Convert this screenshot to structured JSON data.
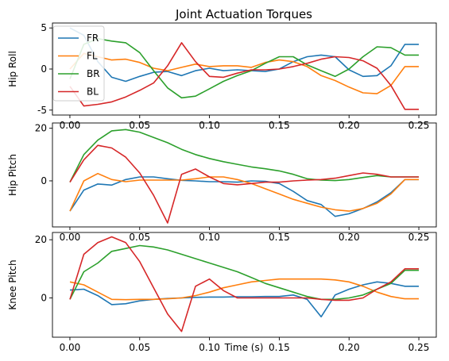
{
  "chart_data": {
    "type": "line",
    "title": "Joint Actuation Torques",
    "xlabel": "Time (s)",
    "x": [
      0.0,
      0.01,
      0.02,
      0.03,
      0.04,
      0.05,
      0.06,
      0.07,
      0.08,
      0.09,
      0.1,
      0.11,
      0.12,
      0.13,
      0.14,
      0.15,
      0.16,
      0.17,
      0.18,
      0.19,
      0.2,
      0.21,
      0.22,
      0.23,
      0.24,
      0.25
    ],
    "xticks": [
      "0.00",
      "0.05",
      "0.10",
      "0.15",
      "0.20",
      "0.25"
    ],
    "xlim": [
      -0.0125,
      0.2625
    ],
    "grid": false,
    "legend": {
      "location": "top-left",
      "entries": [
        "FR",
        "FL",
        "BR",
        "BL"
      ]
    },
    "colors": {
      "FR": "#1f77b4",
      "FL": "#ff7f0e",
      "BR": "#2ca02c",
      "BL": "#d62728"
    },
    "panels": [
      {
        "ylabel": "Hip Roll",
        "ylim": [
          -5.6,
          5.6
        ],
        "yticks": [
          5,
          0,
          -5
        ],
        "series": [
          {
            "name": "FR",
            "values": [
              5.0,
              4.1,
              0.9,
              -1.0,
              -1.5,
              -0.9,
              -0.4,
              -0.3,
              -0.8,
              -0.2,
              0.1,
              -0.2,
              -0.1,
              -0.2,
              -0.3,
              0.0,
              0.9,
              1.5,
              1.7,
              1.5,
              -0.1,
              -0.9,
              -0.8,
              0.4,
              3.0,
              3.0
            ]
          },
          {
            "name": "FL",
            "values": [
              0.0,
              1.9,
              1.5,
              1.1,
              1.2,
              0.8,
              0.1,
              -0.2,
              0.2,
              0.6,
              0.3,
              0.4,
              0.4,
              0.2,
              0.8,
              1.1,
              0.9,
              0.3,
              -0.8,
              -1.4,
              -2.2,
              -2.9,
              -3.0,
              -2.0,
              0.3,
              0.3
            ]
          },
          {
            "name": "BR",
            "values": [
              -1.2,
              3.0,
              3.7,
              3.4,
              3.2,
              2.0,
              -0.2,
              -2.3,
              -3.5,
              -3.3,
              -2.4,
              -1.5,
              -0.8,
              -0.2,
              0.7,
              1.5,
              1.5,
              0.5,
              -0.2,
              -0.9,
              0.0,
              1.5,
              2.7,
              2.6,
              1.7,
              1.7
            ]
          },
          {
            "name": "BL",
            "values": [
              -2.1,
              -4.5,
              -4.3,
              -4.0,
              -3.4,
              -2.6,
              -1.7,
              0.4,
              3.2,
              0.9,
              -0.9,
              -1.0,
              -0.5,
              -0.1,
              -0.1,
              0.0,
              0.3,
              0.7,
              1.2,
              1.5,
              1.4,
              1.0,
              0.1,
              -2.0,
              -4.9,
              -4.9
            ]
          }
        ]
      },
      {
        "ylabel": "Hip Pitch",
        "ylim": [
          -17.5,
          22
        ],
        "yticks": [
          20,
          0
        ],
        "series": [
          {
            "name": "FR",
            "values": [
              -11.5,
              -3.5,
              -1.2,
              -1.6,
              0.5,
              1.5,
              1.5,
              0.8,
              0.2,
              0.0,
              -0.3,
              -0.3,
              -0.5,
              0.0,
              -0.2,
              -1.0,
              -4.0,
              -7.5,
              -9.0,
              -13.5,
              -12.5,
              -10.5,
              -8.0,
              -4.5,
              0.5,
              0.5
            ]
          },
          {
            "name": "FL",
            "values": [
              -11.5,
              0.0,
              2.8,
              0.5,
              -0.3,
              0.3,
              0.3,
              0.3,
              0.3,
              0.8,
              1.5,
              1.5,
              0.5,
              -1.0,
              -3.0,
              -5.0,
              -7.0,
              -8.5,
              -10.0,
              -11.0,
              -11.5,
              -10.5,
              -8.5,
              -5.0,
              0.5,
              0.5
            ]
          },
          {
            "name": "BR",
            "values": [
              -0.5,
              10.0,
              15.5,
              19.0,
              19.5,
              18.5,
              16.5,
              14.5,
              12.0,
              10.0,
              8.5,
              7.3,
              6.3,
              5.3,
              4.6,
              3.8,
              2.5,
              0.8,
              0.3,
              0.1,
              0.5,
              1.3,
              2.0,
              1.5,
              1.5,
              1.5
            ]
          },
          {
            "name": "BL",
            "values": [
              -0.5,
              8.0,
              13.5,
              12.5,
              9.0,
              3.0,
              -5.5,
              -16.0,
              2.5,
              4.5,
              1.5,
              -1.0,
              -1.5,
              -1.0,
              -0.5,
              -0.5,
              0.0,
              0.3,
              0.5,
              1.0,
              2.0,
              3.0,
              2.5,
              1.5,
              1.5,
              1.5
            ]
          }
        ]
      },
      {
        "ylabel": "Knee Pitch",
        "ylim": [
          -13.5,
          22.5
        ],
        "yticks": [
          20,
          0
        ],
        "series": [
          {
            "name": "FR",
            "values": [
              2.7,
              3.0,
              0.8,
              -2.3,
              -2.0,
              -1.0,
              -0.5,
              -0.2,
              0.0,
              0.2,
              0.3,
              0.3,
              0.4,
              0.4,
              0.5,
              0.5,
              1.0,
              -0.5,
              -6.5,
              1.0,
              3.0,
              4.5,
              5.5,
              5.0,
              4.0,
              4.0
            ]
          },
          {
            "name": "FL",
            "values": [
              5.5,
              4.5,
              2.0,
              -0.5,
              -0.6,
              -0.5,
              -0.5,
              -0.3,
              0.0,
              0.8,
              2.0,
              3.5,
              4.5,
              5.5,
              6.0,
              6.5,
              6.5,
              6.5,
              6.5,
              6.2,
              5.5,
              4.0,
              2.0,
              0.5,
              -0.3,
              -0.3
            ]
          },
          {
            "name": "BR",
            "values": [
              -0.5,
              9.0,
              12.0,
              16.0,
              17.0,
              18.0,
              17.5,
              16.5,
              15.0,
              13.5,
              12.0,
              10.5,
              9.0,
              7.0,
              5.0,
              3.5,
              2.0,
              0.5,
              -0.5,
              -0.5,
              0.0,
              1.0,
              3.0,
              5.0,
              9.5,
              9.5
            ]
          },
          {
            "name": "BL",
            "values": [
              -0.5,
              15.0,
              19.0,
              21.0,
              19.0,
              12.5,
              3.5,
              -5.5,
              -11.5,
              4.0,
              6.5,
              2.5,
              0.0,
              0.0,
              0.0,
              0.0,
              0.0,
              0.0,
              -0.5,
              -0.8,
              -0.8,
              0.0,
              3.0,
              5.5,
              10.0,
              10.0
            ]
          }
        ]
      }
    ]
  }
}
